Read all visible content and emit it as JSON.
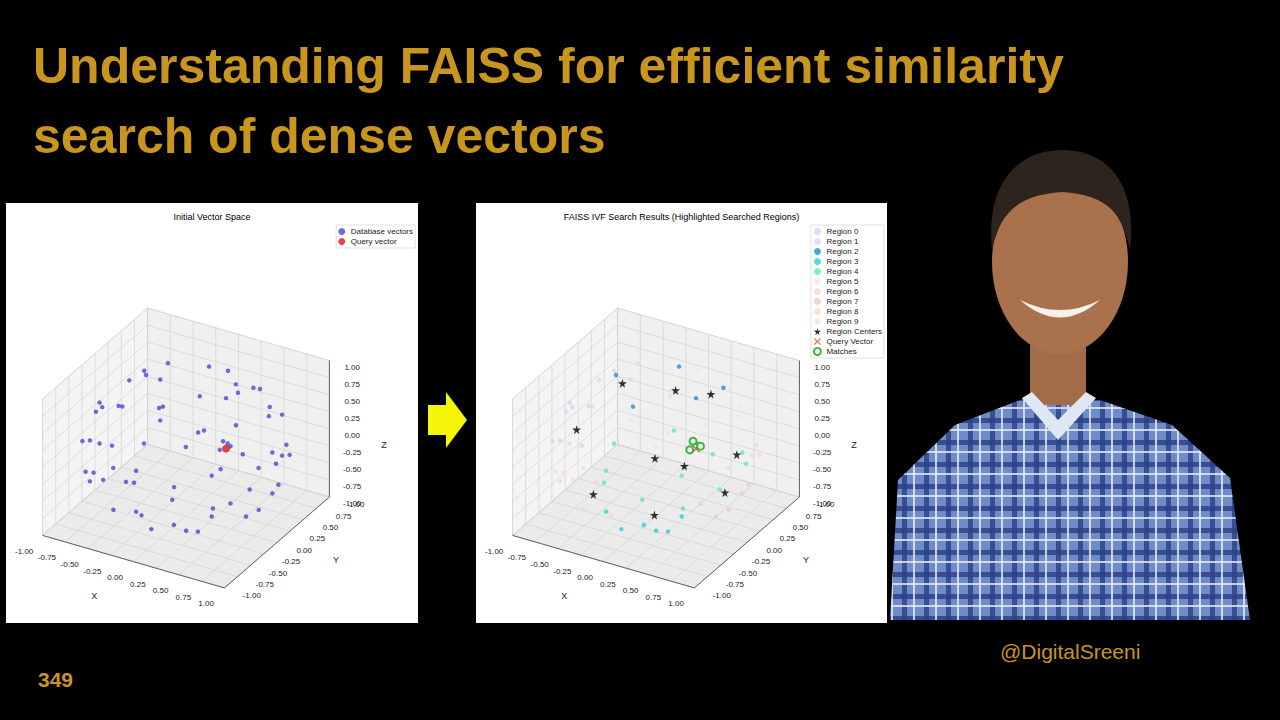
{
  "header": {
    "title": "Understanding FAISS for efficient similarity search of dense vectors"
  },
  "footer": {
    "episode": 349,
    "handle": "@DigitalSreeni"
  },
  "chart_data": [
    {
      "type": "scatter",
      "title": "Initial Vector Space",
      "xlabel": "X",
      "ylabel": "Y",
      "zlabel": "Z",
      "xlim": [
        -1,
        1
      ],
      "ylim": [
        -1,
        1
      ],
      "zlim": [
        -1,
        1
      ],
      "xticks": [
        {
          "value": -1,
          "label": "-1.00"
        },
        -0.75,
        {
          "value": -0.5,
          "label": "-0.50"
        },
        -0.25,
        {
          "value": 0,
          "label": "0.00"
        },
        0.25,
        {
          "value": 0.5,
          "label": "0.50"
        },
        0.75,
        {
          "value": 1,
          "label": "1.00"
        }
      ],
      "yticks": [
        {
          "value": -1,
          "label": "-1.00"
        },
        -0.75,
        {
          "value": -0.5,
          "label": "-0.50"
        },
        -0.25,
        {
          "value": 0,
          "label": "0.00"
        },
        0.25,
        {
          "value": 0.5,
          "label": "0.50"
        },
        0.75,
        {
          "value": 1,
          "label": "1.00"
        }
      ],
      "zticks": [
        {
          "value": -1,
          "label": "-1.00"
        },
        -0.75,
        {
          "value": -0.5,
          "label": "-0.50"
        },
        -0.25,
        {
          "value": 0,
          "label": "0.00"
        },
        0.25,
        {
          "value": 0.5,
          "label": "0.50"
        },
        0.75,
        {
          "value": 1,
          "label": "1.00"
        }
      ],
      "grid": true,
      "legend": "upper right",
      "series": [
        {
          "name": "Database vectors",
          "color": "#4a4ad2",
          "marker": "circle",
          "values": [
            [
              0.44,
              0,
              0.9
            ],
            [
              0,
              0.44,
              0.9
            ],
            [
              -0.44,
              0,
              0.9
            ],
            [
              0,
              -0.44,
              0.9
            ],
            [
              0.69,
              0.4,
              0.6
            ],
            [
              0,
              0.8,
              0.6
            ],
            [
              -0.69,
              0.4,
              0.6
            ],
            [
              -0.69,
              -0.4,
              0.6
            ],
            [
              0,
              -0.8,
              0.6
            ],
            [
              0.69,
              -0.4,
              0.6
            ],
            [
              0.95,
              0,
              0.3
            ],
            [
              0.67,
              0.67,
              0.3
            ],
            [
              0,
              0.95,
              0.3
            ],
            [
              -0.67,
              0.67,
              0.3
            ],
            [
              -0.95,
              0,
              0.3
            ],
            [
              -0.67,
              -0.67,
              0.3
            ],
            [
              0,
              -0.95,
              0.3
            ],
            [
              0.67,
              -0.67,
              0.3
            ],
            [
              0.92,
              0.38,
              0
            ],
            [
              0.38,
              0.92,
              0
            ],
            [
              -0.38,
              0.92,
              0
            ],
            [
              -0.92,
              0.38,
              0
            ],
            [
              -0.92,
              -0.38,
              0
            ],
            [
              -0.38,
              -0.92,
              0
            ],
            [
              0.38,
              -0.92,
              0
            ],
            [
              0.92,
              -0.38,
              0
            ],
            [
              0.95,
              0,
              -0.3
            ],
            [
              0.67,
              0.67,
              -0.3
            ],
            [
              0,
              0.95,
              -0.3
            ],
            [
              -0.67,
              0.67,
              -0.3
            ],
            [
              -0.95,
              0,
              -0.3
            ],
            [
              -0.67,
              -0.67,
              -0.3
            ],
            [
              0,
              -0.95,
              -0.3
            ],
            [
              0.67,
              -0.67,
              -0.3
            ],
            [
              0.8,
              0,
              -0.6
            ],
            [
              0.4,
              0.69,
              -0.6
            ],
            [
              -0.4,
              0.69,
              -0.6
            ],
            [
              -0.8,
              0,
              -0.6
            ],
            [
              -0.4,
              -0.69,
              -0.6
            ],
            [
              0.4,
              -0.69,
              -0.6
            ],
            [
              0.31,
              0.31,
              -0.9
            ],
            [
              -0.31,
              0.31,
              -0.9
            ],
            [
              -0.31,
              -0.31,
              -0.9
            ],
            [
              0.31,
              -0.31,
              -0.9
            ],
            [
              0.47,
              0.47,
              0.75
            ],
            [
              -0.47,
              0.47,
              0.75
            ],
            [
              -0.47,
              -0.47,
              0.75
            ],
            [
              0.47,
              -0.47,
              0.75
            ],
            [
              0.66,
              0,
              -0.75
            ],
            [
              0,
              0.66,
              -0.75
            ],
            [
              -0.66,
              0,
              -0.75
            ],
            [
              0,
              -0.66,
              -0.75
            ],
            [
              0.99,
              0,
              0.15
            ],
            [
              0,
              0.99,
              0.15
            ],
            [
              -0.99,
              0,
              0.15
            ],
            [
              0,
              -0.99,
              0.15
            ],
            [
              0.7,
              0.7,
              -0.15
            ],
            [
              -0.7,
              0.7,
              -0.15
            ],
            [
              -0.7,
              -0.7,
              -0.15
            ],
            [
              0.7,
              -0.7,
              -0.15
            ],
            [
              0.34,
              0.82,
              0.45
            ],
            [
              -0.82,
              0.34,
              0.45
            ],
            [
              -0.34,
              -0.82,
              0.45
            ],
            [
              0.82,
              -0.34,
              0.45
            ],
            [
              0.82,
              0.34,
              -0.45
            ],
            [
              -0.34,
              0.82,
              -0.45
            ],
            [
              -0.82,
              -0.34,
              -0.45
            ],
            [
              0.34,
              -0.82,
              -0.45
            ],
            [
              0.66,
              -0.5,
              0.56
            ],
            [
              0.72,
              -0.4,
              0.57
            ],
            [
              0.65,
              -0.42,
              0.63
            ]
          ]
        },
        {
          "name": "Query vector",
          "color": "#d81c1c",
          "marker": "circle",
          "values": [
            [
              0.7,
              -0.45,
              0.56
            ]
          ]
        }
      ]
    },
    {
      "type": "scatter",
      "title": "FAISS IVF Search Results (Highlighted Searched Regions)",
      "xlabel": "X",
      "ylabel": "Y",
      "zlabel": "Z",
      "xlim": [
        -1,
        1
      ],
      "ylim": [
        -1,
        1
      ],
      "zlim": [
        -1,
        1
      ],
      "xticks": [
        {
          "value": -1,
          "label": "-1.00"
        },
        -0.75,
        {
          "value": -0.5,
          "label": "-0.50"
        },
        -0.25,
        {
          "value": 0,
          "label": "0.00"
        },
        0.25,
        {
          "value": 0.5,
          "label": "0.50"
        },
        0.75,
        {
          "value": 1,
          "label": "1.00"
        }
      ],
      "yticks": [
        {
          "value": -1,
          "label": "-1.00"
        },
        -0.75,
        {
          "value": -0.5,
          "label": "-0.50"
        },
        -0.25,
        {
          "value": 0,
          "label": "0.00"
        },
        0.25,
        {
          "value": 0.5,
          "label": "0.50"
        },
        0.75,
        {
          "value": 1,
          "label": "1.00"
        }
      ],
      "zticks": [
        {
          "value": -1,
          "label": "-1.00"
        },
        -0.75,
        {
          "value": -0.5,
          "label": "-0.50"
        },
        -0.25,
        {
          "value": 0,
          "label": "0.00"
        },
        0.25,
        {
          "value": 0.5,
          "label": "0.50"
        },
        0.75,
        {
          "value": 1,
          "label": "1.00"
        }
      ],
      "grid": true,
      "legend": "upper right",
      "series": [
        {
          "name": "Region 0",
          "color": "#ddd0f5",
          "marker": "circle",
          "values": [
            [
              -0.69,
              -0.4,
              0.6
            ],
            [
              -0.95,
              0,
              0.3
            ],
            [
              -0.67,
              -0.67,
              0.3
            ],
            [
              -0.92,
              -0.38,
              0
            ],
            [
              -0.95,
              0,
              -0.3
            ],
            [
              -0.47,
              -0.47,
              0.75
            ],
            [
              -0.99,
              0,
              0.15
            ],
            [
              -0.34,
              -0.82,
              0.45
            ]
          ]
        },
        {
          "name": "Region 1",
          "color": "#d6dbf5",
          "marker": "circle",
          "values": [
            [
              -0.69,
              0.4,
              0.6
            ],
            [
              -0.67,
              0.67,
              0.3
            ],
            [
              -0.38,
              0.92,
              0
            ],
            [
              -0.92,
              0.38,
              0
            ],
            [
              -0.47,
              0.47,
              0.75
            ],
            [
              -0.82,
              0.34,
              0.45
            ]
          ]
        },
        {
          "name": "Region 2",
          "color": "#1f8fd6",
          "marker": "circle",
          "values": [
            [
              0.44,
              0,
              0.9
            ],
            [
              0,
              0.44,
              0.9
            ],
            [
              -0.44,
              0,
              0.9
            ],
            [
              0,
              -0.44,
              0.9
            ],
            [
              0.47,
              0.47,
              0.75
            ]
          ]
        },
        {
          "name": "Region 3",
          "color": "#2ccfd9",
          "marker": "circle",
          "values": [
            [
              0,
              -0.95,
              -0.3
            ],
            [
              0.67,
              -0.67,
              -0.3
            ],
            [
              0.4,
              -0.69,
              -0.6
            ],
            [
              0.31,
              -0.31,
              -0.9
            ],
            [
              0,
              -0.66,
              -0.75
            ],
            [
              0.34,
              -0.82,
              -0.45
            ]
          ]
        },
        {
          "name": "Region 4",
          "color": "#5eeab8",
          "marker": "circle",
          "values": [
            [
              0,
              -0.8,
              0.6
            ],
            [
              0.69,
              -0.4,
              0.6
            ],
            [
              0.95,
              0,
              0.3
            ],
            [
              0,
              -0.95,
              0.3
            ],
            [
              0.67,
              -0.67,
              0.3
            ],
            [
              0.38,
              -0.92,
              0
            ],
            [
              0.92,
              -0.38,
              0
            ],
            [
              0.47,
              -0.47,
              0.75
            ],
            [
              0.99,
              0,
              0.15
            ],
            [
              0,
              -0.99,
              0.15
            ],
            [
              0.7,
              -0.7,
              -0.15
            ],
            [
              0.82,
              -0.34,
              0.45
            ],
            [
              0.66,
              -0.5,
              0.56
            ],
            [
              0.72,
              -0.4,
              0.57
            ],
            [
              0.65,
              -0.42,
              0.63
            ]
          ]
        },
        {
          "name": "Region 5",
          "color": "#f5e3ea",
          "marker": "circle",
          "values": [
            [
              0.69,
              0.4,
              0.6
            ],
            [
              0,
              0.8,
              0.6
            ],
            [
              0.67,
              0.67,
              0.3
            ],
            [
              0,
              0.95,
              0.3
            ],
            [
              0.38,
              0.92,
              0
            ],
            [
              0,
              0.99,
              0.15
            ],
            [
              0.34,
              0.82,
              0.45
            ]
          ]
        },
        {
          "name": "Region 6",
          "color": "#f7d6d6",
          "marker": "circle",
          "values": [
            [
              0.92,
              0.38,
              0
            ],
            [
              0.67,
              0.67,
              -0.3
            ],
            [
              0.4,
              0.69,
              -0.6
            ],
            [
              0.7,
              0.7,
              -0.15
            ]
          ]
        },
        {
          "name": "Region 7",
          "color": "#f5c6c6",
          "marker": "circle",
          "values": [
            [
              0.95,
              0,
              -0.3
            ],
            [
              0.8,
              0,
              -0.6
            ],
            [
              0.31,
              0.31,
              -0.9
            ],
            [
              0.66,
              0,
              -0.75
            ],
            [
              0.82,
              0.34,
              -0.45
            ]
          ]
        },
        {
          "name": "Region 8",
          "color": "#f7d8c8",
          "marker": "circle",
          "values": [
            [
              -0.38,
              -0.92,
              0
            ],
            [
              -0.67,
              -0.67,
              -0.3
            ],
            [
              -0.8,
              0,
              -0.6
            ],
            [
              -0.4,
              -0.69,
              -0.6
            ],
            [
              -0.31,
              -0.31,
              -0.9
            ],
            [
              -0.66,
              0,
              -0.75
            ],
            [
              -0.7,
              -0.7,
              -0.15
            ],
            [
              -0.82,
              -0.34,
              -0.45
            ]
          ]
        },
        {
          "name": "Region 9",
          "color": "#f5e6d6",
          "marker": "circle",
          "values": [
            [
              0,
              0.95,
              -0.3
            ],
            [
              -0.67,
              0.67,
              -0.3
            ],
            [
              -0.4,
              0.69,
              -0.6
            ],
            [
              -0.31,
              0.31,
              -0.9
            ],
            [
              0,
              0.66,
              -0.75
            ],
            [
              -0.7,
              0.7,
              -0.15
            ],
            [
              -0.34,
              0.82,
              -0.45
            ]
          ]
        },
        {
          "name": "Region Centers",
          "color": "#000000",
          "marker": "star",
          "values": [
            [
              -0.7,
              -0.3,
              0.2
            ],
            [
              -0.6,
              0.4,
              0.45
            ],
            [
              0.1,
              0.2,
              0.75
            ],
            [
              0.3,
              -0.55,
              -0.5
            ],
            [
              0.6,
              -0.5,
              0.3
            ],
            [
              0.2,
              0.7,
              0.4
            ],
            [
              0.6,
              0.5,
              -0.2
            ],
            [
              0.7,
              0.1,
              -0.45
            ],
            [
              -0.4,
              -0.5,
              -0.5
            ],
            [
              -0.3,
              0.5,
              -0.6
            ]
          ]
        },
        {
          "name": "Query Vector",
          "color": "#d83a1c",
          "marker": "x",
          "values": [
            [
              0.7,
              -0.45,
              0.56
            ]
          ]
        },
        {
          "name": "Matches",
          "color": "#14a014",
          "marker": "ring",
          "values": [
            [
              0.66,
              -0.5,
              0.56
            ],
            [
              0.72,
              -0.4,
              0.57
            ],
            [
              0.65,
              -0.42,
              0.63
            ]
          ]
        }
      ]
    }
  ]
}
